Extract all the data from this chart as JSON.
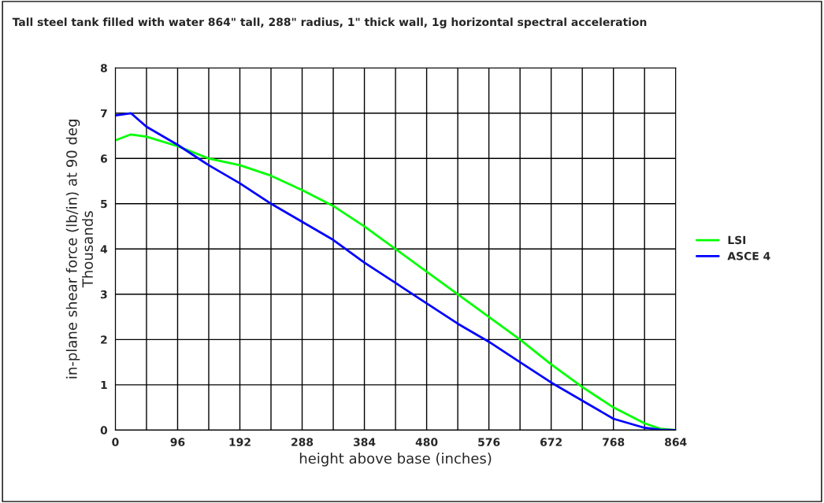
{
  "chart_data": {
    "type": "line",
    "title": "Tall steel tank filled with water 864\" tall, 288\" radius, 1\" thick wall, 1g horizontal spectral acceleration",
    "xlabel": "height above base (inches)",
    "ylabel": "in-plane shear force (lb/in) at 90 deg",
    "annotations": [
      "Thousands"
    ],
    "x": [
      0,
      24,
      48,
      96,
      144,
      192,
      240,
      288,
      336,
      384,
      432,
      480,
      528,
      576,
      624,
      672,
      720,
      768,
      816,
      840,
      864
    ],
    "series": [
      {
        "name": "LSI",
        "color": "#00ff00",
        "values": [
          6.4,
          6.53,
          6.48,
          6.27,
          6.0,
          5.85,
          5.62,
          5.3,
          4.95,
          4.5,
          4.0,
          3.5,
          3.0,
          2.5,
          2.0,
          1.45,
          0.95,
          0.5,
          0.15,
          0.03,
          0
        ]
      },
      {
        "name": "ASCE 4",
        "color": "#0000ff",
        "values": [
          6.95,
          7.0,
          6.7,
          6.3,
          5.85,
          5.45,
          5.0,
          4.6,
          4.2,
          3.7,
          3.25,
          2.8,
          2.35,
          1.95,
          1.5,
          1.05,
          0.65,
          0.25,
          0.05,
          0.01,
          0
        ]
      }
    ],
    "xlim": [
      0,
      864
    ],
    "xticks": [
      0,
      96,
      192,
      288,
      384,
      480,
      576,
      672,
      768,
      864
    ],
    "ylim": [
      0,
      8
    ],
    "yticks": [
      0,
      1,
      2,
      3,
      4,
      5,
      6,
      7,
      8
    ],
    "grid": true,
    "legend": "right",
    "line_style": "solid"
  }
}
